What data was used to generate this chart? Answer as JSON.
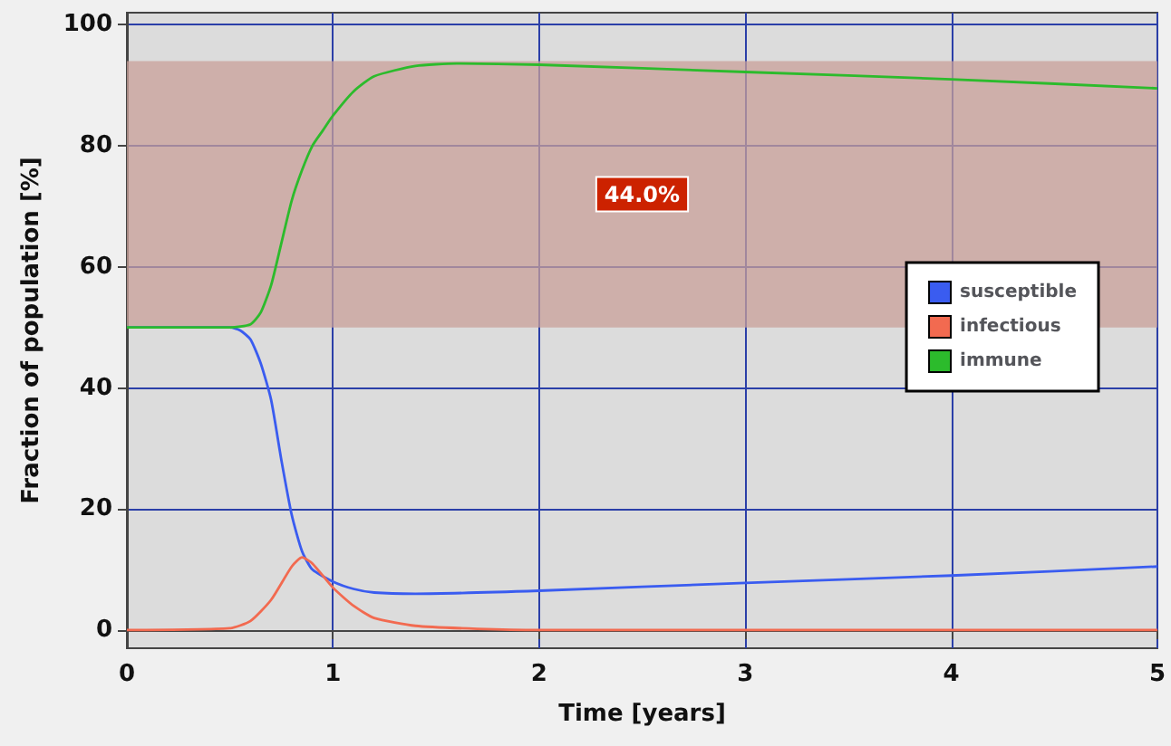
{
  "chart_data": {
    "type": "line",
    "xlabel": "Time [years]",
    "ylabel": "Fraction of population [%]",
    "xlim": [
      0,
      5
    ],
    "xticks": [
      0,
      1,
      2,
      3,
      4,
      5
    ],
    "ylim": [
      -3,
      102
    ],
    "yticks": [
      0,
      20,
      40,
      60,
      80,
      100
    ],
    "grid": true,
    "legend": "right",
    "marker": "none",
    "line_style": "solid",
    "bands": [
      {
        "axis": "y",
        "from": 50,
        "to": 94,
        "label": "44.0%",
        "color": "#c9a09a"
      }
    ],
    "series": [
      {
        "name": "susceptible",
        "color": "#3a5cf0",
        "x": [
          0,
          0.5,
          0.55,
          0.6,
          0.65,
          0.7,
          0.75,
          0.8,
          0.85,
          0.9,
          1.0,
          1.1,
          1.2,
          1.4,
          2,
          3,
          4,
          5
        ],
        "values": [
          50,
          50,
          49.5,
          48,
          44,
          38,
          28,
          19,
          13,
          10,
          8,
          6.8,
          6.2,
          6,
          6.5,
          7.8,
          9,
          10.5
        ]
      },
      {
        "name": "infectious",
        "color": "#f26a50",
        "x": [
          0,
          0.5,
          0.6,
          0.7,
          0.8,
          0.85,
          0.9,
          1.0,
          1.1,
          1.2,
          1.4,
          1.7,
          2,
          5
        ],
        "values": [
          0,
          0.3,
          1.5,
          5,
          10.5,
          12,
          11,
          7,
          4,
          2,
          0.7,
          0.2,
          0,
          0
        ]
      },
      {
        "name": "immune",
        "color": "#2cbb2c",
        "x": [
          0,
          0.5,
          0.6,
          0.65,
          0.7,
          0.75,
          0.8,
          0.85,
          0.9,
          0.95,
          1.0,
          1.1,
          1.2,
          1.4,
          1.6,
          2,
          3,
          4,
          5
        ],
        "values": [
          50,
          50,
          50.5,
          52.5,
          57,
          64,
          71,
          76,
          80,
          82.5,
          85,
          89,
          91.5,
          93.2,
          93.6,
          93.4,
          92.2,
          91,
          89.5
        ]
      }
    ]
  }
}
